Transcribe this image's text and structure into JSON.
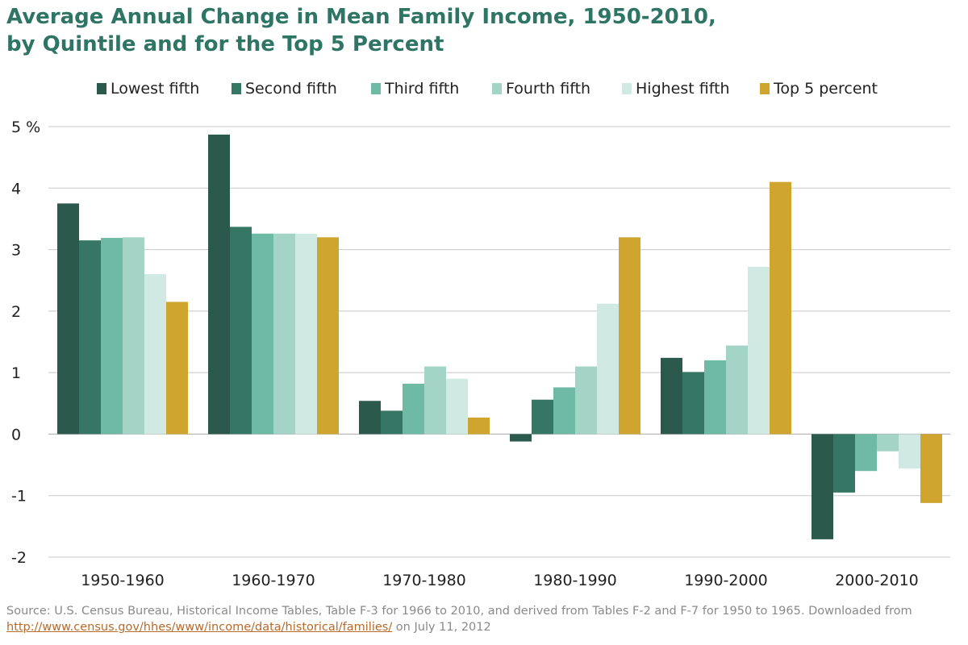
{
  "title_line1": "Average Annual Change in Mean Family Income, 1950-2010,",
  "title_line2": "by Quintile and for the Top 5 Percent",
  "source_prefix": "Source: U.S. Census Bureau, Historical Income Tables, Table F-3 for 1966 to 2010, and derived from Tables F-2 and F-7 for 1950 to 1965. Downloaded from ",
  "source_link": "http://www.census.gov/hhes/www/income/data/historical/families/",
  "source_suffix": " on July 11, 2012",
  "chart_data": {
    "type": "bar",
    "categories": [
      "1950-1960",
      "1960-1970",
      "1970-1980",
      "1980-1990",
      "1990-2000",
      "2000-2010"
    ],
    "series": [
      {
        "name": "Lowest fifth",
        "color": "#2b5a4c",
        "values": [
          3.75,
          4.87,
          0.54,
          -0.12,
          1.24,
          -1.71
        ]
      },
      {
        "name": "Second fifth",
        "color": "#357665",
        "values": [
          3.15,
          3.37,
          0.38,
          0.56,
          1.01,
          -0.95
        ]
      },
      {
        "name": "Third fifth",
        "color": "#6fbaa5",
        "values": [
          3.19,
          3.26,
          0.82,
          0.76,
          1.2,
          -0.6
        ]
      },
      {
        "name": "Fourth fifth",
        "color": "#a3d4c6",
        "values": [
          3.2,
          3.26,
          1.1,
          1.1,
          1.44,
          -0.28
        ]
      },
      {
        "name": "Highest fifth",
        "color": "#d0e9e3",
        "values": [
          2.6,
          3.26,
          0.9,
          2.12,
          2.72,
          -0.56
        ]
      },
      {
        "name": "Top 5 percent",
        "color": "#d0a52f",
        "values": [
          2.15,
          3.2,
          0.27,
          3.2,
          4.1,
          -1.12
        ]
      }
    ],
    "ylim": [
      -2,
      5
    ],
    "yticks": [
      5,
      4,
      3,
      2,
      1,
      0,
      -1,
      -2
    ],
    "ytick_labels": [
      "5 %",
      "4",
      "3",
      "2",
      "1",
      "0",
      "-1",
      "-2"
    ],
    "grid": true,
    "legend_position": "top"
  }
}
